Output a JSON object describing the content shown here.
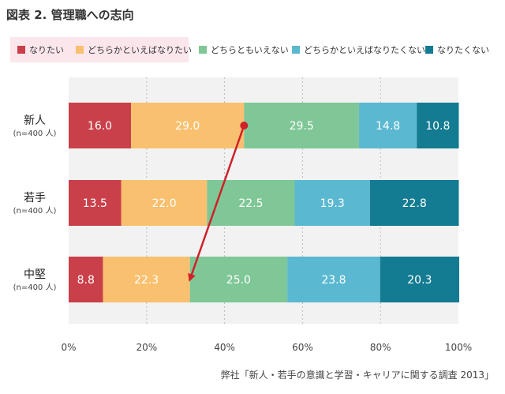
{
  "title": "図表 2. 管理職への志向",
  "source": "弊社「新人・若手の意識と学習・キャリアに関する調査 2013」",
  "chart_data": {
    "type": "bar",
    "orientation": "horizontal",
    "stacked": true,
    "categories": [
      "新人",
      "若手",
      "中堅"
    ],
    "category_sublabels": [
      "(n=400 人)",
      "(n=400 人)",
      "(n=400 人)"
    ],
    "series": [
      {
        "name": "なりたい",
        "color": "#c9404a",
        "values": [
          16.0,
          13.5,
          8.8
        ]
      },
      {
        "name": "どちらかといえばなりたい",
        "color": "#f9c06f",
        "values": [
          29.0,
          22.0,
          22.3
        ]
      },
      {
        "name": "どちらともいえない",
        "color": "#7fc796",
        "values": [
          29.5,
          22.5,
          25.0
        ]
      },
      {
        "name": "どちらかといえばなりたくない",
        "color": "#5bb8d1",
        "values": [
          14.8,
          19.3,
          23.8
        ]
      },
      {
        "name": "なりたくない",
        "color": "#137b92",
        "values": [
          10.8,
          22.8,
          20.3
        ]
      }
    ],
    "value_labels": [
      [
        "16.0",
        "29.0",
        "29.5",
        "14.8",
        "10.8"
      ],
      [
        "13.5",
        "22.0",
        "22.5",
        "19.3",
        "22.8"
      ],
      [
        "8.8",
        "22.3",
        "25.0",
        "23.8",
        "20.3"
      ]
    ],
    "xlim": [
      0,
      100
    ],
    "xticks": [
      "0%",
      "20%",
      "40%",
      "60%",
      "80%",
      "100%"
    ],
    "grid": true,
    "legend_position": "top",
    "annotation": {
      "type": "arrow",
      "color": "#d0202a",
      "from": {
        "category": "新人",
        "value": 45.0
      },
      "to": {
        "category": "中堅",
        "value": 31.1
      }
    },
    "plot_background": "#f2f2f2"
  }
}
